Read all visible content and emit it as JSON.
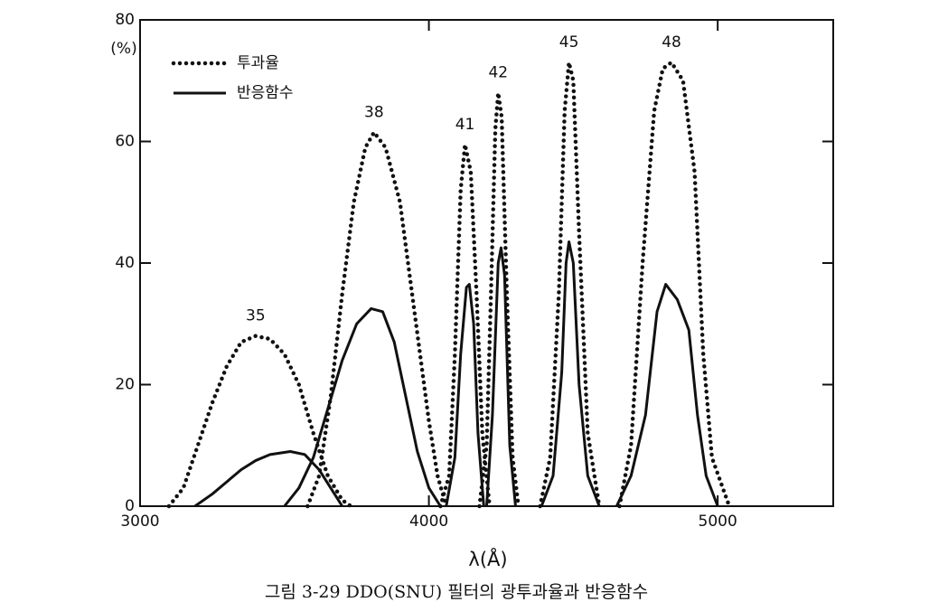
{
  "chart_data": {
    "type": "line",
    "y_label": "(%)",
    "x_label": "λ(Å)",
    "caption": "그림 3-29  DDO(SNU) 필터의 광투과율과 반응함수",
    "xlim": [
      3000,
      5400
    ],
    "ylim": [
      0,
      80
    ],
    "xticks": [
      3000,
      4000,
      5000
    ],
    "yticks": [
      0,
      20,
      40,
      60,
      80
    ],
    "legend": "upper left",
    "series": [
      {
        "name": "투과율",
        "color": "#111111",
        "line_style": "dotted",
        "curves": [
          {
            "label": "35",
            "x": [
              3100,
              3150,
              3200,
              3250,
              3300,
              3350,
              3400,
              3450,
              3500,
              3550,
              3600,
              3650,
              3700,
              3730
            ],
            "values": [
              0,
              3,
              10,
              17,
              23,
              27,
              28,
              27.5,
              25,
              20,
              12,
              5,
              1,
              0
            ]
          },
          {
            "label": "38",
            "x": [
              3580,
              3620,
              3660,
              3700,
              3740,
              3780,
              3810,
              3850,
              3900,
              3950,
              4000,
              4030,
              4060
            ],
            "values": [
              0,
              5,
              18,
              35,
              50,
              59,
              61.5,
              59,
              50,
              32,
              14,
              5,
              0
            ]
          },
          {
            "label": "41",
            "x": [
              4040,
              4070,
              4090,
              4110,
              4125,
              4145,
              4165,
              4185,
              4210
            ],
            "values": [
              0,
              5,
              25,
              52,
              59.5,
              55,
              35,
              12,
              0
            ]
          },
          {
            "label": "42",
            "x": [
              4175,
              4200,
              4215,
              4230,
              4240,
              4252,
              4270,
              4290,
              4310
            ],
            "values": [
              0,
              10,
              35,
              62,
              68,
              64,
              35,
              8,
              0
            ]
          },
          {
            "label": "45",
            "x": [
              4385,
              4420,
              4450,
              4470,
              4485,
              4500,
              4520,
              4550,
              4590
            ],
            "values": [
              0,
              8,
              35,
              65,
              73,
              70,
              45,
              12,
              0
            ]
          },
          {
            "label": "48",
            "x": [
              4660,
              4700,
              4740,
              4780,
              4810,
              4840,
              4880,
              4920,
              4950,
              4980,
              5040
            ],
            "values": [
              0,
              10,
              40,
              65,
              72,
              73,
              70,
              55,
              25,
              8,
              0
            ]
          }
        ]
      },
      {
        "name": "반응함수",
        "color": "#111111",
        "line_style": "solid",
        "curves": [
          {
            "x": [
              3190,
              3250,
              3300,
              3350,
              3400,
              3450,
              3520,
              3570,
              3620,
              3660,
              3700
            ],
            "values": [
              0,
              2,
              4,
              6,
              7.5,
              8.5,
              9,
              8.5,
              6,
              3,
              0
            ]
          },
          {
            "x": [
              3500,
              3550,
              3600,
              3650,
              3700,
              3750,
              3800,
              3840,
              3880,
              3920,
              3960,
              4000,
              4040
            ],
            "values": [
              0,
              3,
              8,
              16,
              24,
              30,
              32.5,
              32,
              27,
              18,
              9,
              3,
              0
            ]
          },
          {
            "x": [
              4060,
              4090,
              4110,
              4130,
              4140,
              4155,
              4170,
              4190
            ],
            "values": [
              0,
              8,
              25,
              36,
              36.5,
              30,
              12,
              0
            ]
          },
          {
            "x": [
              4200,
              4220,
              4240,
              4250,
              4262,
              4280,
              4300
            ],
            "values": [
              0,
              15,
              40,
              42.5,
              38,
              10,
              0
            ]
          },
          {
            "x": [
              4390,
              4430,
              4460,
              4475,
              4485,
              4500,
              4520,
              4550,
              4590
            ],
            "values": [
              0,
              5,
              22,
              40,
              43.5,
              40,
              20,
              5,
              0
            ]
          },
          {
            "x": [
              4650,
              4700,
              4750,
              4790,
              4820,
              4860,
              4900,
              4930,
              4960,
              5000
            ],
            "values": [
              0,
              5,
              15,
              32,
              36.5,
              34,
              29,
              15,
              5,
              0
            ]
          }
        ]
      }
    ]
  }
}
